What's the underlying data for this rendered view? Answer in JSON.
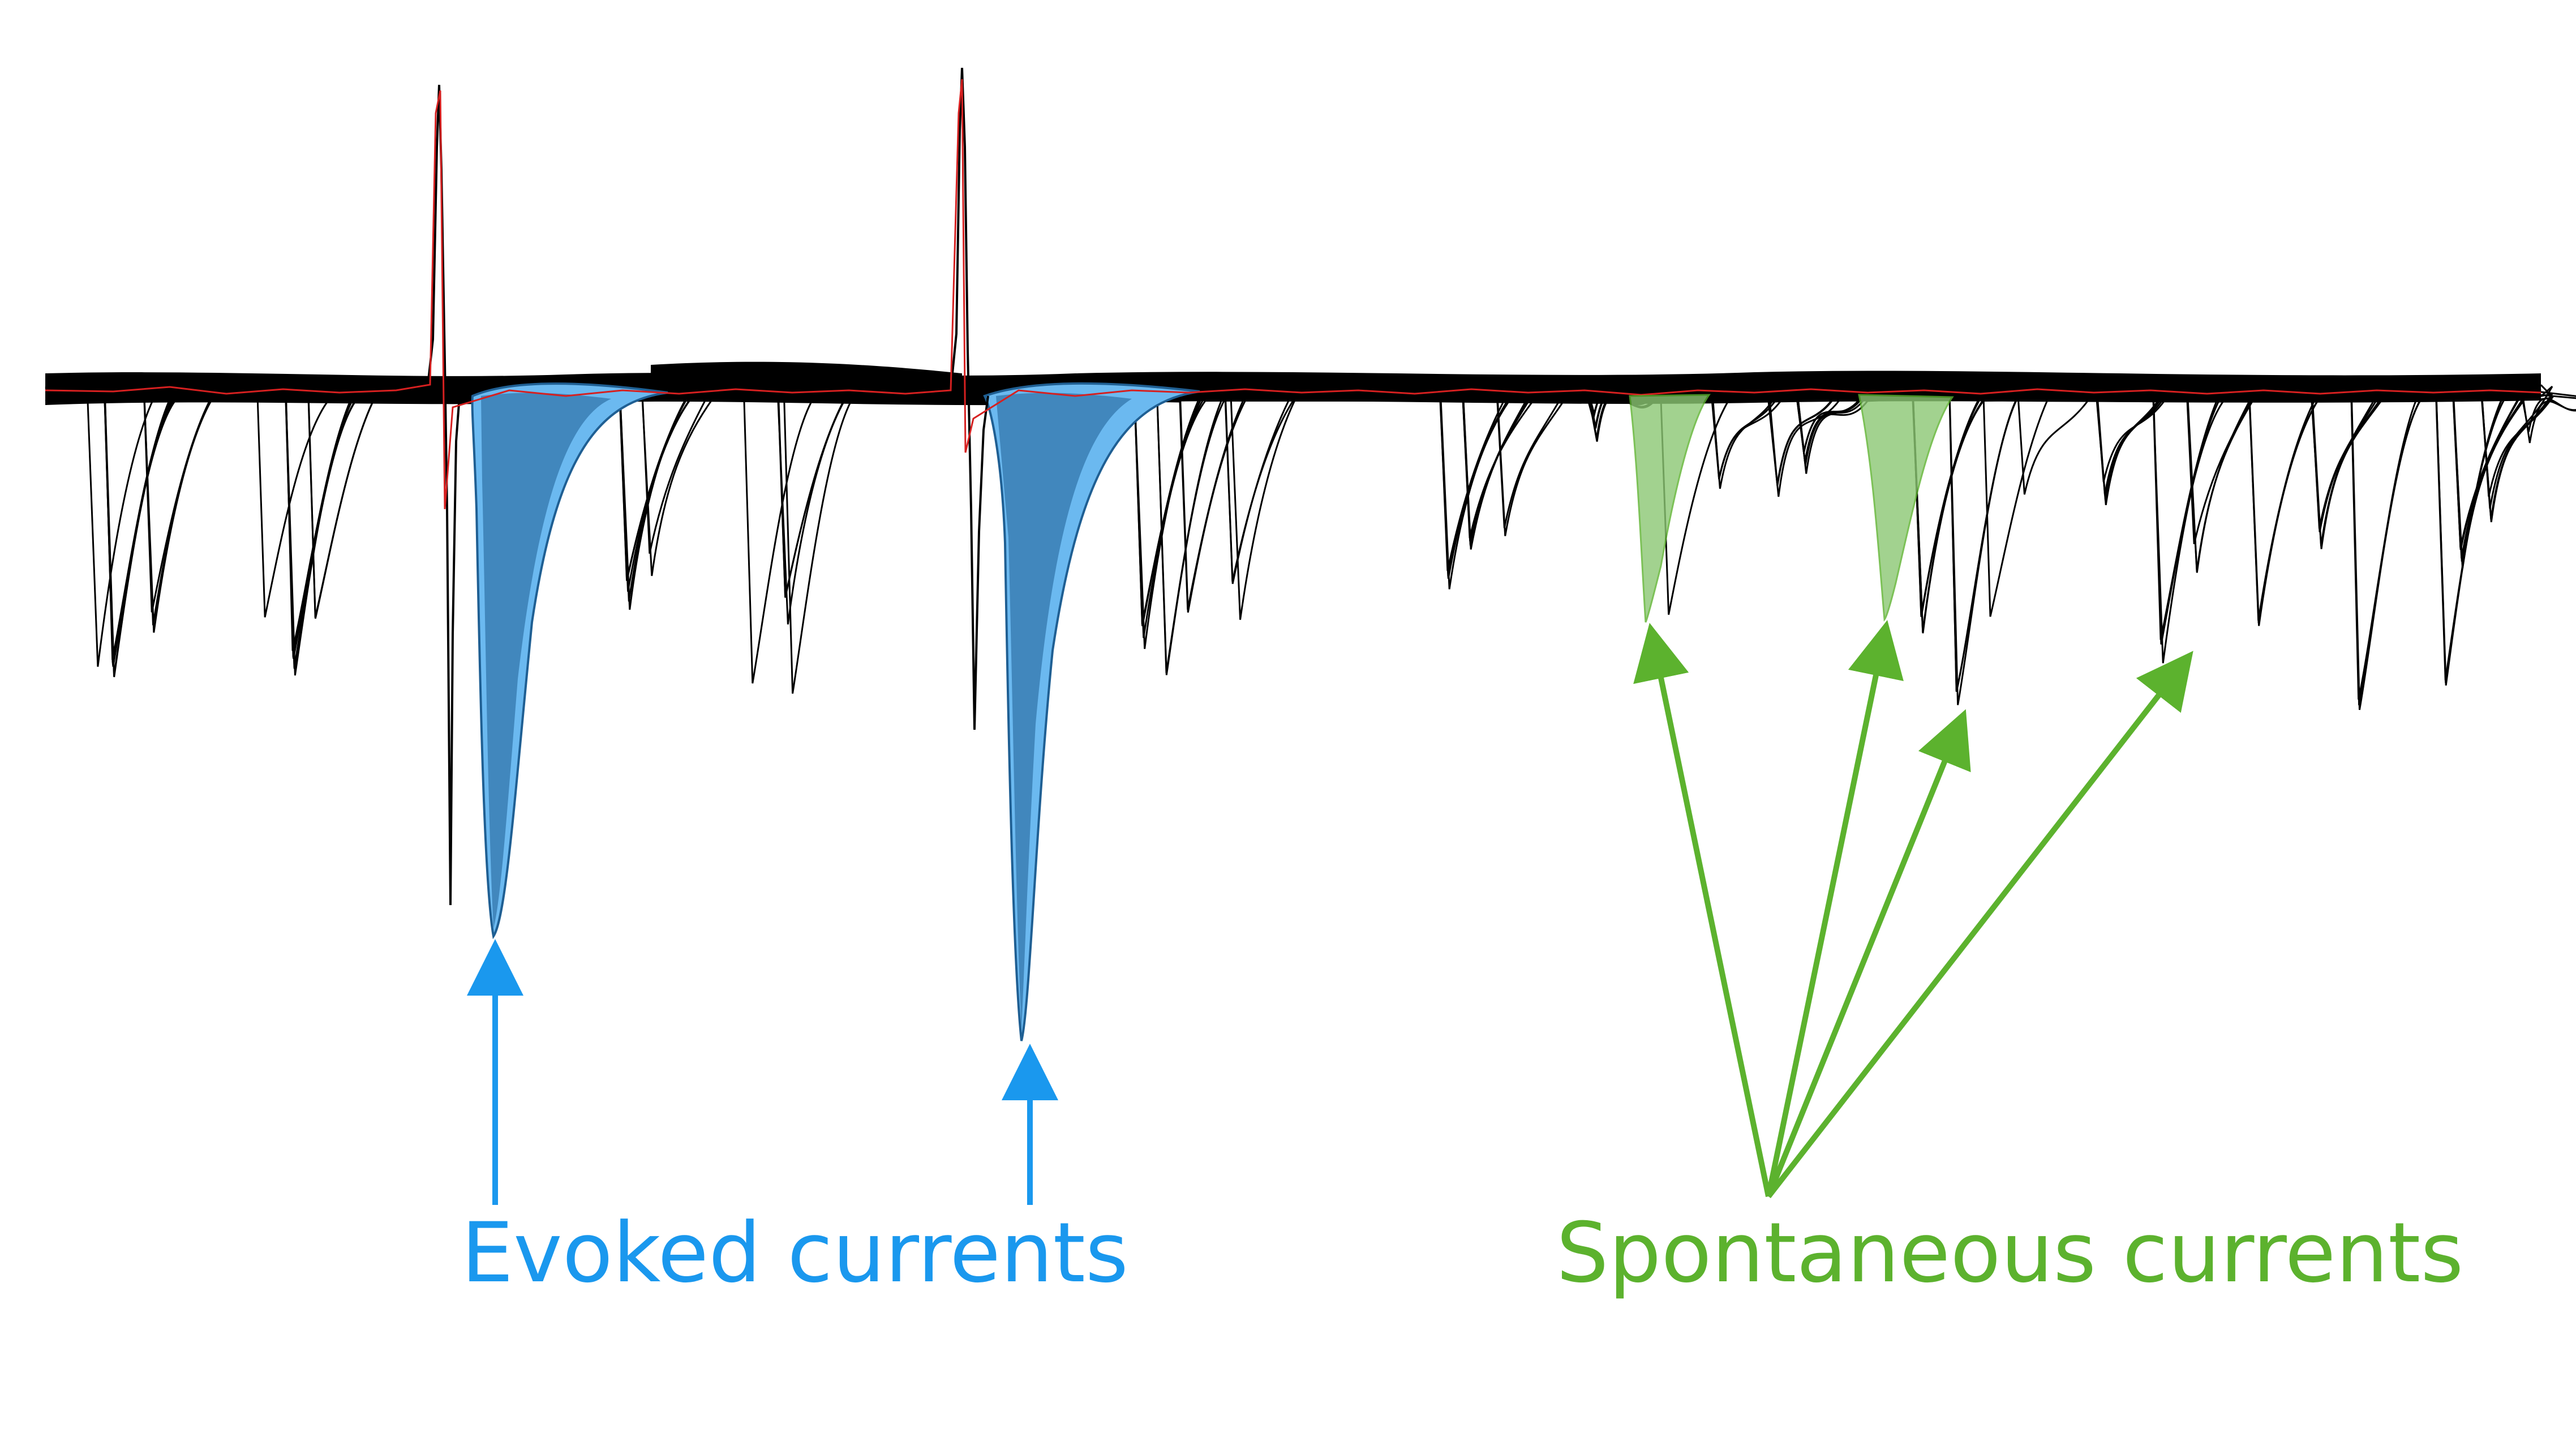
{
  "labels": {
    "evoked": "Evoked currents",
    "spontaneous": "Spontaneous currents"
  },
  "colors": {
    "background": "#ffffff",
    "trace": "#000000",
    "average_trace": "#d62020",
    "evoked": "#1a98ee",
    "evoked_fill": "#6bb9f0",
    "evoked_dark": "#1f5f93",
    "spontaneous": "#5cb22e",
    "spontaneous_fill": "#8cc874"
  }
}
